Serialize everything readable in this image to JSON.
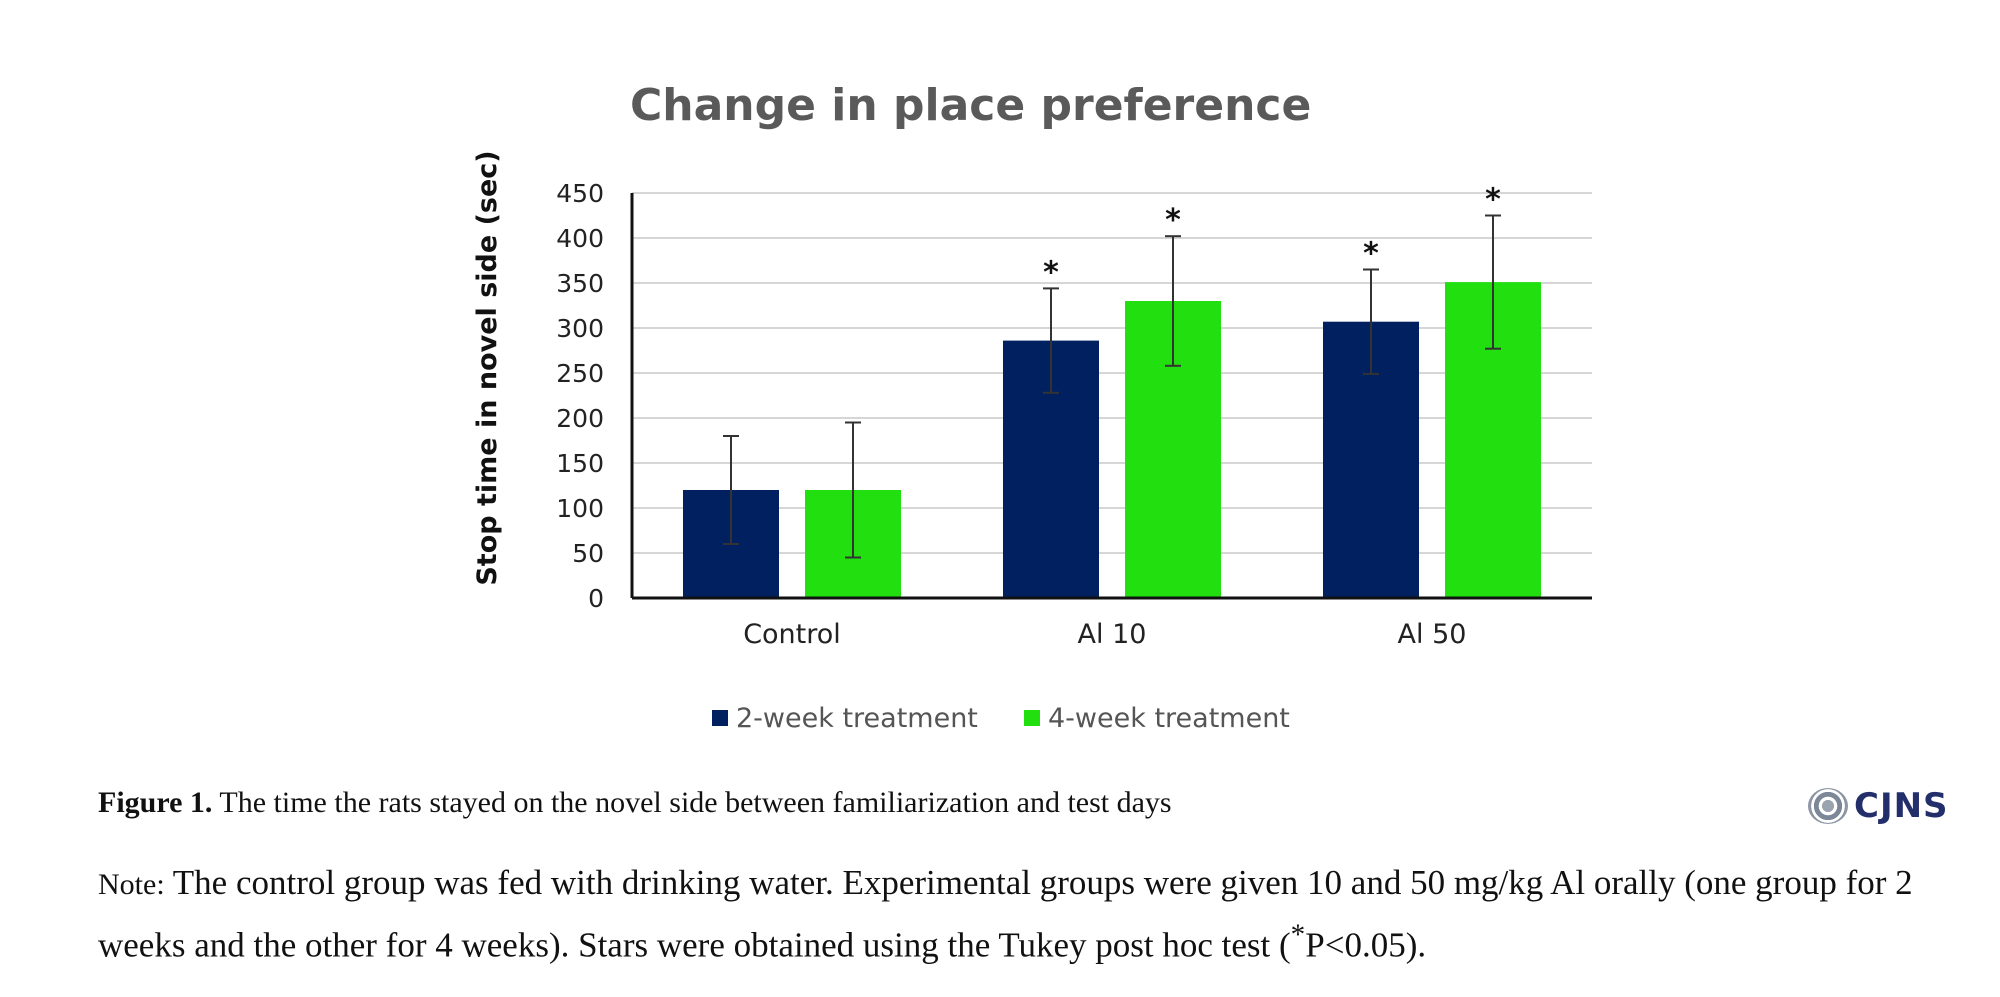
{
  "chart_data": {
    "type": "bar",
    "title": "Change in place preference",
    "xlabel": "",
    "ylabel": "Stop time in novel side (sec)",
    "ylim": [
      0,
      450
    ],
    "yticks": [
      "0",
      "50",
      "100",
      "150",
      "200",
      "250",
      "300",
      "350",
      "400",
      "450"
    ],
    "categories": [
      "Control",
      "Al 10",
      "Al 50"
    ],
    "series": [
      {
        "name": "2-week treatment",
        "color": "#002060",
        "values": [
          120,
          286,
          307
        ],
        "error": [
          60,
          58,
          58
        ],
        "significant": [
          false,
          true,
          true
        ]
      },
      {
        "name": "4-week treatment",
        "color": "#22e010",
        "values": [
          120,
          330,
          351
        ],
        "error": [
          75,
          72,
          74
        ],
        "significant": [
          false,
          true,
          true
        ]
      }
    ],
    "significance_marker": "*",
    "grid": true,
    "legend": "bottom"
  },
  "caption": {
    "label": "Figure 1.",
    "text": " The time the rats stayed on the novel side between familiarization and test days"
  },
  "note": {
    "label": "Note:",
    "text": " The control group was fed with drinking water. Experimental groups were given 10 and 50 mg/kg Al orally (one group for 2 weeks and the other for 4 weeks). Stars were obtained using the Tukey post hoc test (",
    "sup": "*",
    "text_end": "P<0.05)."
  },
  "logo": {
    "text": "CJNS"
  }
}
